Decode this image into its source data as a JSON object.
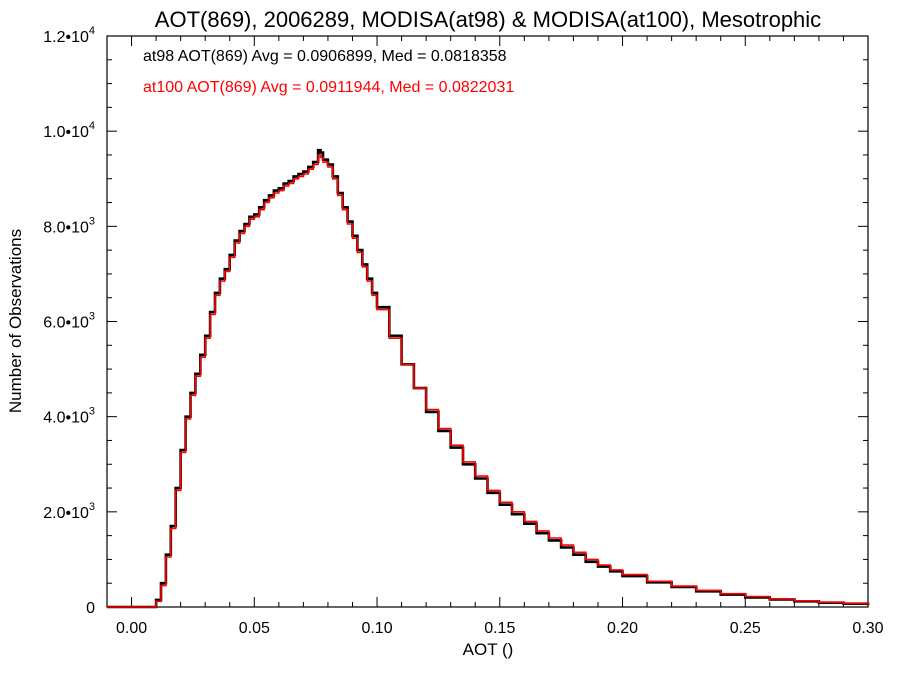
{
  "chart_data": {
    "type": "line",
    "title": "AOT(869), 2006289, MODISA(at98) & MODISA(at100), Mesotrophic",
    "xlabel": "AOT ()",
    "ylabel": "Number of Observations",
    "xlim": [
      -0.01,
      0.3
    ],
    "ylim": [
      0,
      12000
    ],
    "x_ticks": [
      {
        "value": 0.0,
        "label": "0.00"
      },
      {
        "value": 0.05,
        "label": "0.05"
      },
      {
        "value": 0.1,
        "label": "0.10"
      },
      {
        "value": 0.15,
        "label": "0.15"
      },
      {
        "value": 0.2,
        "label": "0.20"
      },
      {
        "value": 0.25,
        "label": "0.25"
      },
      {
        "value": 0.3,
        "label": "0.30"
      }
    ],
    "y_ticks": [
      {
        "value": 0,
        "mantissa": "0",
        "exp": ""
      },
      {
        "value": 2000,
        "mantissa": "2.0•10",
        "exp": "3"
      },
      {
        "value": 4000,
        "mantissa": "4.0•10",
        "exp": "3"
      },
      {
        "value": 6000,
        "mantissa": "6.0•10",
        "exp": "3"
      },
      {
        "value": 8000,
        "mantissa": "8.0•10",
        "exp": "3"
      },
      {
        "value": 10000,
        "mantissa": "1.0•10",
        "exp": "4"
      },
      {
        "value": 12000,
        "mantissa": "1.2•10",
        "exp": "4"
      }
    ],
    "annotations": [
      {
        "text": "at98 AOT(869) Avg = 0.0906899, Med = 0.0818358",
        "color": "#000000"
      },
      {
        "text": "at100 AOT(869) Avg = 0.0911944, Med = 0.0822031",
        "color": "#ff0000"
      }
    ],
    "series": [
      {
        "color": "#000000",
        "x": [
          -0.01,
          0.008,
          0.01,
          0.012,
          0.014,
          0.016,
          0.018,
          0.02,
          0.022,
          0.024,
          0.026,
          0.028,
          0.03,
          0.032,
          0.034,
          0.036,
          0.038,
          0.04,
          0.042,
          0.044,
          0.046,
          0.048,
          0.05,
          0.052,
          0.054,
          0.056,
          0.058,
          0.06,
          0.062,
          0.064,
          0.066,
          0.068,
          0.07,
          0.072,
          0.074,
          0.076,
          0.077,
          0.078,
          0.08,
          0.082,
          0.084,
          0.086,
          0.088,
          0.09,
          0.092,
          0.094,
          0.096,
          0.098,
          0.1,
          0.105,
          0.11,
          0.115,
          0.12,
          0.125,
          0.13,
          0.135,
          0.14,
          0.145,
          0.15,
          0.155,
          0.16,
          0.165,
          0.17,
          0.175,
          0.18,
          0.185,
          0.19,
          0.195,
          0.2,
          0.21,
          0.22,
          0.23,
          0.24,
          0.25,
          0.26,
          0.27,
          0.28,
          0.29,
          0.3
        ],
        "y": [
          0,
          0,
          150,
          500,
          1100,
          1700,
          2500,
          3300,
          4000,
          4500,
          4900,
          5300,
          5700,
          6200,
          6600,
          6900,
          7100,
          7400,
          7700,
          7900,
          8050,
          8200,
          8250,
          8400,
          8550,
          8650,
          8750,
          8800,
          8900,
          8950,
          9050,
          9100,
          9150,
          9250,
          9350,
          9600,
          9550,
          9400,
          9300,
          9050,
          8700,
          8400,
          8100,
          7800,
          7500,
          7200,
          6900,
          6600,
          6300,
          5700,
          5100,
          4600,
          4100,
          3700,
          3350,
          3000,
          2700,
          2400,
          2150,
          1950,
          1750,
          1550,
          1400,
          1250,
          1100,
          950,
          850,
          750,
          650,
          520,
          420,
          330,
          260,
          200,
          160,
          120,
          90,
          70,
          40
        ]
      },
      {
        "color": "#ff0000",
        "x": [
          -0.01,
          0.008,
          0.01,
          0.012,
          0.014,
          0.016,
          0.018,
          0.02,
          0.022,
          0.024,
          0.026,
          0.028,
          0.03,
          0.032,
          0.034,
          0.036,
          0.038,
          0.04,
          0.042,
          0.044,
          0.046,
          0.048,
          0.05,
          0.052,
          0.054,
          0.056,
          0.058,
          0.06,
          0.062,
          0.064,
          0.066,
          0.068,
          0.07,
          0.072,
          0.074,
          0.076,
          0.077,
          0.078,
          0.08,
          0.082,
          0.084,
          0.086,
          0.088,
          0.09,
          0.092,
          0.094,
          0.096,
          0.098,
          0.1,
          0.105,
          0.11,
          0.115,
          0.12,
          0.125,
          0.13,
          0.135,
          0.14,
          0.145,
          0.15,
          0.155,
          0.16,
          0.165,
          0.17,
          0.175,
          0.18,
          0.185,
          0.19,
          0.195,
          0.2,
          0.21,
          0.22,
          0.23,
          0.24,
          0.25,
          0.26,
          0.27,
          0.28,
          0.29,
          0.3
        ],
        "y": [
          0,
          0,
          120,
          450,
          1050,
          1650,
          2450,
          3250,
          3950,
          4450,
          4850,
          5250,
          5650,
          6150,
          6550,
          6850,
          7050,
          7350,
          7650,
          7850,
          8000,
          8150,
          8200,
          8350,
          8500,
          8600,
          8700,
          8750,
          8850,
          8900,
          9000,
          9050,
          9100,
          9200,
          9300,
          9500,
          9450,
          9350,
          9250,
          9000,
          8650,
          8350,
          8050,
          7750,
          7450,
          7150,
          6850,
          6550,
          6250,
          5650,
          5100,
          4600,
          4150,
          3750,
          3400,
          3050,
          2750,
          2450,
          2200,
          2000,
          1800,
          1600,
          1450,
          1300,
          1150,
          1000,
          880,
          780,
          680,
          540,
          440,
          350,
          280,
          220,
          170,
          130,
          100,
          75,
          50
        ]
      }
    ]
  }
}
